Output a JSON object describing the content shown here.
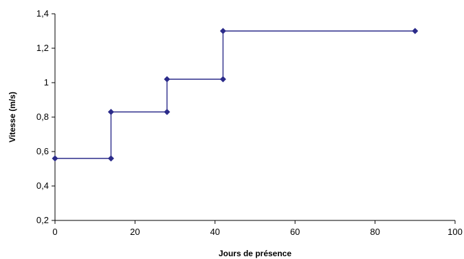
{
  "chart_data": {
    "type": "line",
    "step": true,
    "title": "",
    "xlabel": "Jours de présence",
    "ylabel": "Vitesse (m/s)",
    "xlim": [
      0,
      100
    ],
    "ylim": [
      0.2,
      1.4
    ],
    "xticks": [
      0,
      20,
      40,
      60,
      80,
      100
    ],
    "xtick_labels": [
      "0",
      "20",
      "40",
      "60",
      "80",
      "100"
    ],
    "yticks": [
      0.2,
      0.4,
      0.6,
      0.8,
      1.0,
      1.2,
      1.4
    ],
    "ytick_labels": [
      "0,2",
      "0,4",
      "0,6",
      "0,8",
      "1",
      "1,2",
      "1,4"
    ],
    "grid": false,
    "legend": false,
    "marker": "diamond",
    "color": "#2b2b8a",
    "series": [
      {
        "points": [
          {
            "x": 0,
            "y": 0.56
          },
          {
            "x": 14,
            "y": 0.56
          },
          {
            "x": 14,
            "y": 0.83
          },
          {
            "x": 28,
            "y": 0.83
          },
          {
            "x": 28,
            "y": 1.02
          },
          {
            "x": 42,
            "y": 1.02
          },
          {
            "x": 42,
            "y": 1.3
          },
          {
            "x": 90,
            "y": 1.3
          }
        ]
      }
    ]
  }
}
